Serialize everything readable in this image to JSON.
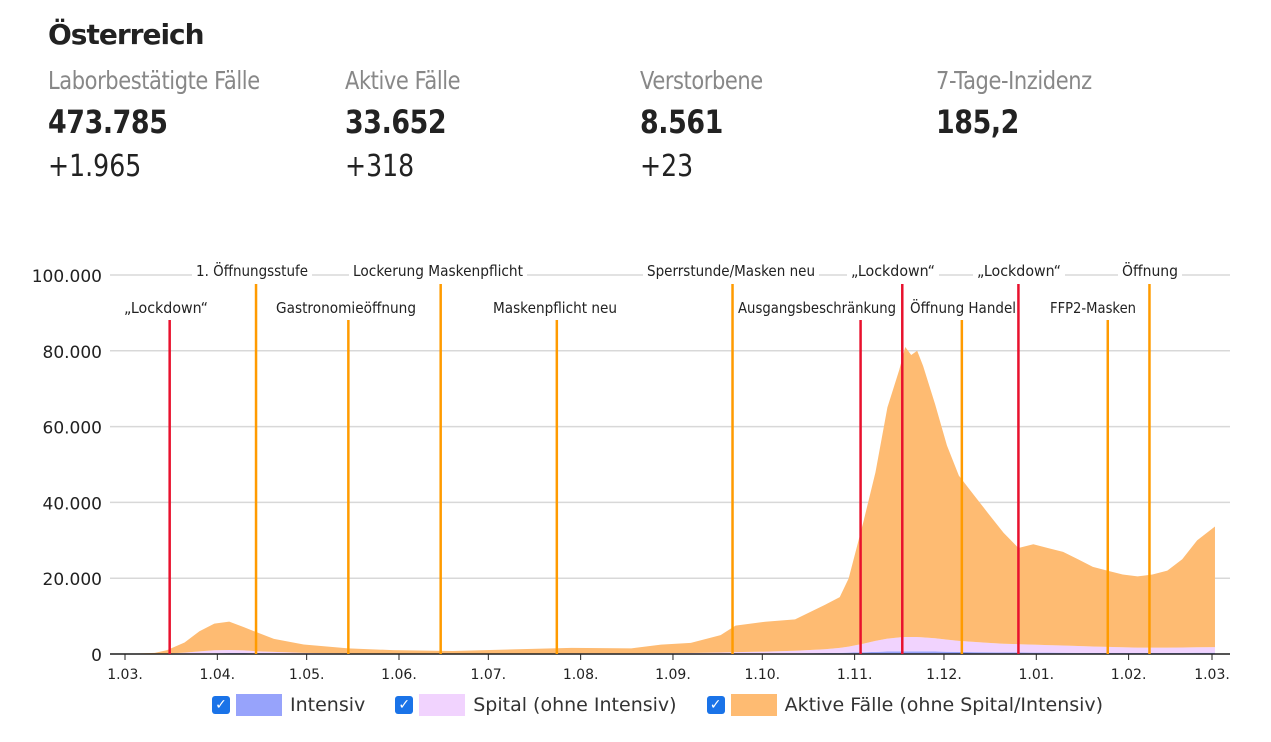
{
  "title": "Österreich",
  "stats": [
    {
      "label": "Laborbestätigte Fälle",
      "value": "473.785",
      "delta": "+1.965"
    },
    {
      "label": "Aktive Fälle",
      "value": "33.652",
      "delta": "+318"
    },
    {
      "label": "Verstorbene",
      "value": "8.561",
      "delta": "+23"
    },
    {
      "label": "7-Tage-Inzidenz",
      "value": "185,2",
      "delta": ""
    }
  ],
  "chart_data": {
    "type": "area",
    "x_unit": "days since 1.03.2020",
    "xlim": [
      0,
      366
    ],
    "ylim": [
      0,
      100000
    ],
    "yticks": [
      {
        "v": 0,
        "label": "0"
      },
      {
        "v": 20000,
        "label": "20.000"
      },
      {
        "v": 40000,
        "label": "40.000"
      },
      {
        "v": 60000,
        "label": "60.000"
      },
      {
        "v": 80000,
        "label": "80.000"
      },
      {
        "v": 100000,
        "label": "100.000"
      }
    ],
    "xticks": [
      {
        "d": 0,
        "label": "1.03."
      },
      {
        "d": 31,
        "label": "1.04."
      },
      {
        "d": 61,
        "label": "1.05."
      },
      {
        "d": 92,
        "label": "1.06."
      },
      {
        "d": 122,
        "label": "1.07."
      },
      {
        "d": 153,
        "label": "1.08."
      },
      {
        "d": 184,
        "label": "1.09."
      },
      {
        "d": 214,
        "label": "1.10."
      },
      {
        "d": 245,
        "label": "1.11."
      },
      {
        "d": 275,
        "label": "1.12."
      },
      {
        "d": 306,
        "label": "1.01."
      },
      {
        "d": 337,
        "label": "1.02."
      },
      {
        "d": 365,
        "label": "1.03."
      }
    ],
    "x": [
      0,
      10,
      14,
      20,
      25,
      30,
      35,
      40,
      45,
      50,
      60,
      75,
      90,
      110,
      130,
      150,
      170,
      180,
      190,
      200,
      205,
      215,
      225,
      235,
      240,
      243,
      248,
      252,
      256,
      260,
      262,
      264,
      266,
      268,
      272,
      276,
      280,
      285,
      290,
      295,
      300,
      305,
      310,
      315,
      320,
      325,
      330,
      335,
      340,
      345,
      350,
      355,
      360,
      366
    ],
    "series": [
      {
        "name": "Intensiv",
        "color": "#97a3fb",
        "values": [
          0,
          0,
          0,
          50,
          100,
          200,
          250,
          250,
          200,
          150,
          100,
          50,
          30,
          20,
          20,
          30,
          30,
          40,
          50,
          80,
          100,
          120,
          150,
          250,
          300,
          350,
          450,
          550,
          650,
          700,
          700,
          700,
          700,
          680,
          650,
          600,
          550,
          500,
          450,
          400,
          380,
          370,
          350,
          330,
          310,
          290,
          280,
          270,
          270,
          280,
          290,
          300,
          320,
          330
        ]
      },
      {
        "name": "Spital (ohne Intensiv)",
        "color": "#f1d3fe",
        "values": [
          0,
          0,
          100,
          300,
          600,
          800,
          800,
          700,
          500,
          400,
          200,
          100,
          80,
          80,
          100,
          120,
          120,
          150,
          200,
          300,
          400,
          500,
          700,
          1000,
          1300,
          1600,
          2300,
          2900,
          3400,
          3700,
          3800,
          3800,
          3800,
          3700,
          3500,
          3200,
          2900,
          2700,
          2500,
          2300,
          2200,
          2100,
          2000,
          1900,
          1800,
          1700,
          1600,
          1500,
          1400,
          1400,
          1400,
          1400,
          1450,
          1500
        ]
      },
      {
        "name": "Aktive Fälle (ohne Spital/Intensiv)",
        "color": "#febb72",
        "values": [
          0,
          300,
          900,
          2700,
          5300,
          7000,
          7500,
          6100,
          4800,
          3450,
          2200,
          1350,
          900,
          700,
          1100,
          1450,
          1350,
          2300,
          2700,
          4600,
          7000,
          7900,
          8300,
          11700,
          13400,
          18000,
          32300,
          44500,
          61000,
          70600,
          76500,
          74400,
          75500,
          71600,
          61800,
          51200,
          43600,
          38800,
          34000,
          29300,
          25400,
          26500,
          25600,
          24700,
          22900,
          21000,
          20100,
          19200,
          18800,
          19300,
          20300,
          23300,
          28200,
          31800
        ]
      }
    ],
    "events": [
      {
        "d": 15,
        "label": "„Lockdown“",
        "color": "#e8112d",
        "row": 2
      },
      {
        "d": 44,
        "label": "1. Öffnungsstufe",
        "color": "#ff9b00",
        "row": 1
      },
      {
        "d": 75,
        "label": "Gastronomieöffnung",
        "color": "#ff9b00",
        "row": 2
      },
      {
        "d": 106,
        "label": "Lockerung Maskenpflicht",
        "color": "#ff9b00",
        "row": 1
      },
      {
        "d": 145,
        "label": "Maskenpflicht neu",
        "color": "#ff9b00",
        "row": 2
      },
      {
        "d": 204,
        "label": "Sperrstunde/Masken neu",
        "color": "#ff9b00",
        "row": 1
      },
      {
        "d": 247,
        "label": "Ausgangsbeschränkung",
        "color": "#e8112d",
        "row": 2
      },
      {
        "d": 261,
        "label": "„Lockdown“",
        "color": "#e8112d",
        "row": 1
      },
      {
        "d": 281,
        "label": "Öffnung Handel",
        "color": "#ff9b00",
        "row": 2
      },
      {
        "d": 300,
        "label": "„Lockdown“",
        "color": "#e8112d",
        "row": 1
      },
      {
        "d": 330,
        "label": "FFP2-Masken",
        "color": "#ff9b00",
        "row": 2
      },
      {
        "d": 344,
        "label": "Öffnung",
        "color": "#ff9b00",
        "row": 1
      }
    ]
  }
}
